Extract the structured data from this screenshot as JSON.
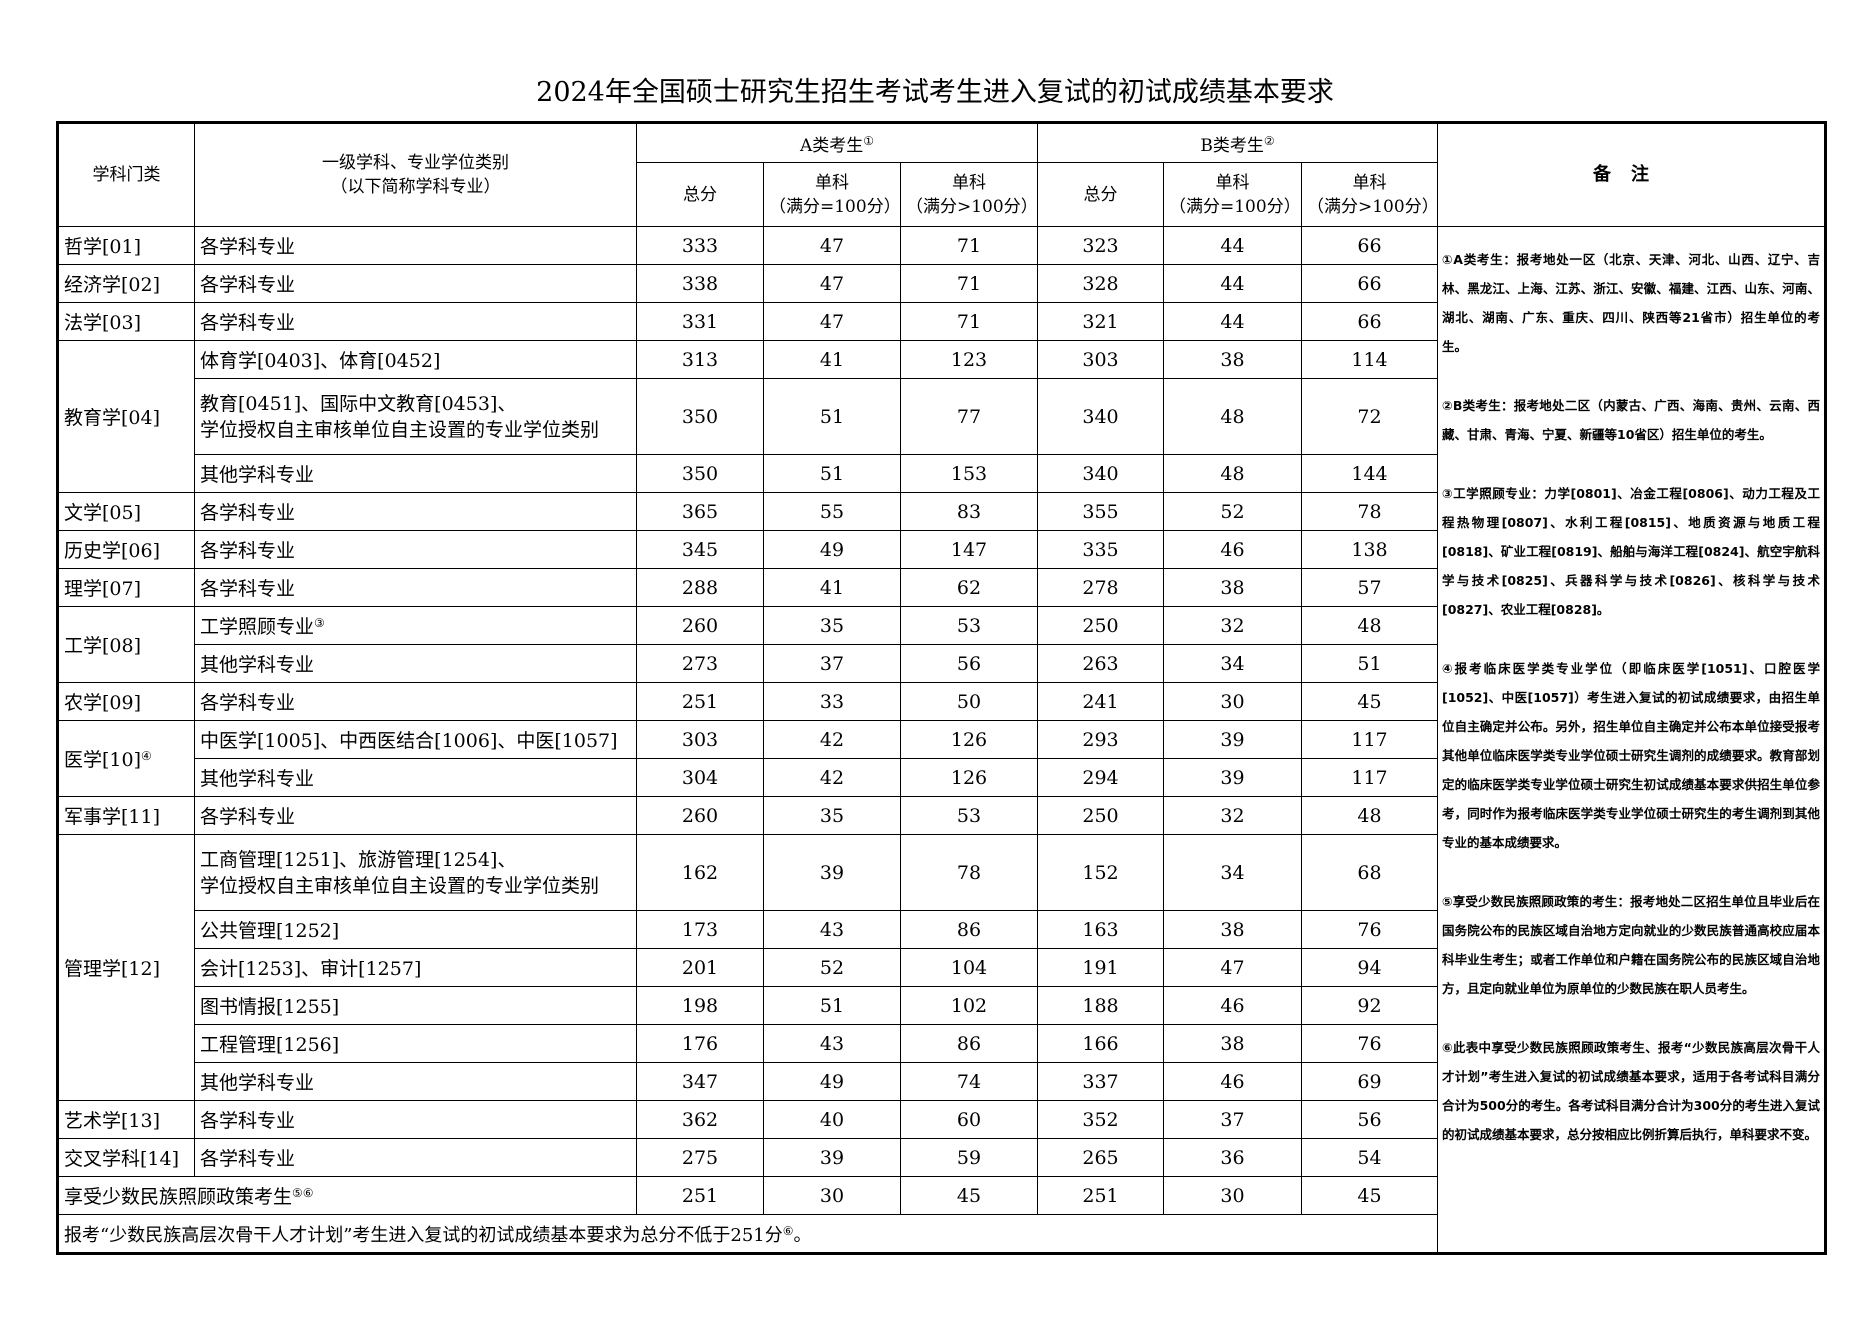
{
  "title": "2024年全国硕士研究生招生考试考生进入复试的初试成绩基本要求",
  "header": {
    "category": "学科门类",
    "major_line1": "一级学科、专业学位类别",
    "major_line2": "（以下简称学科专业）",
    "group_a": "A类考生",
    "group_a_sup": "①",
    "group_b": "B类考生",
    "group_b_sup": "②",
    "total": "总分",
    "single": "单科",
    "full100": "（满分=100分）",
    "fullgt100": "（满分>100分）",
    "remarks": "备注"
  },
  "rows": [
    {
      "category": "哲学[01]",
      "cat_span": 1,
      "major": "各学科专业",
      "a": [
        "333",
        "47",
        "71"
      ],
      "b": [
        "323",
        "44",
        "66"
      ]
    },
    {
      "category": "经济学[02]",
      "cat_span": 1,
      "major": "各学科专业",
      "a": [
        "338",
        "47",
        "71"
      ],
      "b": [
        "328",
        "44",
        "66"
      ]
    },
    {
      "category": "法学[03]",
      "cat_span": 1,
      "major": "各学科专业",
      "a": [
        "331",
        "47",
        "71"
      ],
      "b": [
        "321",
        "44",
        "66"
      ]
    },
    {
      "category": "教育学[04]",
      "cat_span": 3,
      "major": "体育学[0403]、体育[0452]",
      "a": [
        "313",
        "41",
        "123"
      ],
      "b": [
        "303",
        "38",
        "114"
      ]
    },
    {
      "major": "教育[0451]、国际中文教育[0453]、",
      "major2": "学位授权自主审核单位自主设置的专业学位类别",
      "a": [
        "350",
        "51",
        "77"
      ],
      "b": [
        "340",
        "48",
        "72"
      ]
    },
    {
      "major": "其他学科专业",
      "a": [
        "350",
        "51",
        "153"
      ],
      "b": [
        "340",
        "48",
        "144"
      ]
    },
    {
      "category": "文学[05]",
      "cat_span": 1,
      "major": "各学科专业",
      "a": [
        "365",
        "55",
        "83"
      ],
      "b": [
        "355",
        "52",
        "78"
      ]
    },
    {
      "category": "历史学[06]",
      "cat_span": 1,
      "major": "各学科专业",
      "a": [
        "345",
        "49",
        "147"
      ],
      "b": [
        "335",
        "46",
        "138"
      ]
    },
    {
      "category": "理学[07]",
      "cat_span": 1,
      "major": "各学科专业",
      "a": [
        "288",
        "41",
        "62"
      ],
      "b": [
        "278",
        "38",
        "57"
      ]
    },
    {
      "category": "工学[08]",
      "cat_span": 2,
      "major": "工学照顾专业",
      "major_sup": "③",
      "a": [
        "260",
        "35",
        "53"
      ],
      "b": [
        "250",
        "32",
        "48"
      ]
    },
    {
      "major": "其他学科专业",
      "a": [
        "273",
        "37",
        "56"
      ],
      "b": [
        "263",
        "34",
        "51"
      ]
    },
    {
      "category": "农学[09]",
      "cat_span": 1,
      "major": "各学科专业",
      "a": [
        "251",
        "33",
        "50"
      ],
      "b": [
        "241",
        "30",
        "45"
      ]
    },
    {
      "category": "医学[10]",
      "cat_sup": "④",
      "cat_span": 2,
      "major": "中医学[1005]、中西医结合[1006]、中医[1057]",
      "a": [
        "303",
        "42",
        "126"
      ],
      "b": [
        "293",
        "39",
        "117"
      ]
    },
    {
      "major": "其他学科专业",
      "a": [
        "304",
        "42",
        "126"
      ],
      "b": [
        "294",
        "39",
        "117"
      ]
    },
    {
      "category": "军事学[11]",
      "cat_span": 1,
      "major": "各学科专业",
      "a": [
        "260",
        "35",
        "53"
      ],
      "b": [
        "250",
        "32",
        "48"
      ]
    },
    {
      "category": "管理学[12]",
      "cat_span": 6,
      "major": "工商管理[1251]、旅游管理[1254]、",
      "major2": "学位授权自主审核单位自主设置的专业学位类别",
      "a": [
        "162",
        "39",
        "78"
      ],
      "b": [
        "152",
        "34",
        "68"
      ]
    },
    {
      "major": "公共管理[1252]",
      "a": [
        "173",
        "43",
        "86"
      ],
      "b": [
        "163",
        "38",
        "76"
      ]
    },
    {
      "major": "会计[1253]、审计[1257]",
      "a": [
        "201",
        "52",
        "104"
      ],
      "b": [
        "191",
        "47",
        "94"
      ]
    },
    {
      "major": "图书情报[1255]",
      "a": [
        "198",
        "51",
        "102"
      ],
      "b": [
        "188",
        "46",
        "92"
      ]
    },
    {
      "major": "工程管理[1256]",
      "a": [
        "176",
        "43",
        "86"
      ],
      "b": [
        "166",
        "38",
        "76"
      ]
    },
    {
      "major": "其他学科专业",
      "a": [
        "347",
        "49",
        "74"
      ],
      "b": [
        "337",
        "46",
        "69"
      ]
    },
    {
      "category": "艺术学[13]",
      "cat_span": 1,
      "major": "各学科专业",
      "a": [
        "362",
        "40",
        "60"
      ],
      "b": [
        "352",
        "37",
        "56"
      ]
    },
    {
      "category": "交叉学科[14]",
      "cat_span": 1,
      "major": "各学科专业",
      "a": [
        "275",
        "39",
        "59"
      ],
      "b": [
        "265",
        "36",
        "54"
      ]
    },
    {
      "merged": "享受少数民族照顾政策考生",
      "merged_sup": "⑤⑥",
      "a": [
        "251",
        "30",
        "45"
      ],
      "b": [
        "251",
        "30",
        "45"
      ]
    }
  ],
  "footer": {
    "text": "报考“少数民族高层次骨干人才计划”考生进入复试的初试成绩基本要求为总分不低于251分",
    "sup": "⑥",
    "end": "。"
  },
  "remarks": [
    "①A类考生：报考地处一区（北京、天津、河北、山西、辽宁、吉林、黑龙江、上海、江苏、浙江、安徽、福建、江西、山东、河南、湖北、湖南、广东、重庆、四川、陕西等21省市）招生单位的考生。",
    "②B类考生：报考地处二区（内蒙古、广西、海南、贵州、云南、西藏、甘肃、青海、宁夏、新疆等10省区）招生单位的考生。",
    "③工学照顾专业：力学[0801]、冶金工程[0806]、动力工程及工程热物理[0807]、水利工程[0815]、地质资源与地质工程[0818]、矿业工程[0819]、船舶与海洋工程[0824]、航空宇航科学与技术[0825]、兵器科学与技术[0826]、核科学与技术[0827]、农业工程[0828]。",
    "④报考临床医学类专业学位（即临床医学[1051]、口腔医学[1052]、中医[1057]）考生进入复试的初试成绩要求，由招生单位自主确定并公布。另外，招生单位自主确定并公布本单位接受报考其他单位临床医学类专业学位硕士研究生调剂的成绩要求。教育部划定的临床医学类专业学位硕士研究生初试成绩基本要求供招生单位参考，同时作为报考临床医学类专业学位硕士研究生的考生调剂到其他专业的基本成绩要求。",
    "⑤享受少数民族照顾政策的考生：报考地处二区招生单位且毕业后在国务院公布的民族区域自治地方定向就业的少数民族普通高校应届本科毕业生考生；或者工作单位和户籍在国务院公布的民族区域自治地方，且定向就业单位为原单位的少数民族在职人员考生。",
    "⑥此表中享受少数民族照顾政策考生、报考“少数民族高层次骨干人才计划”考生进入复试的初试成绩基本要求，适用于各考试科目满分合计为500分的考生。各考试科目满分合计为300分的考生进入复试的初试成绩基本要求，总分按相应比例折算后执行，单科要求不变。"
  ]
}
